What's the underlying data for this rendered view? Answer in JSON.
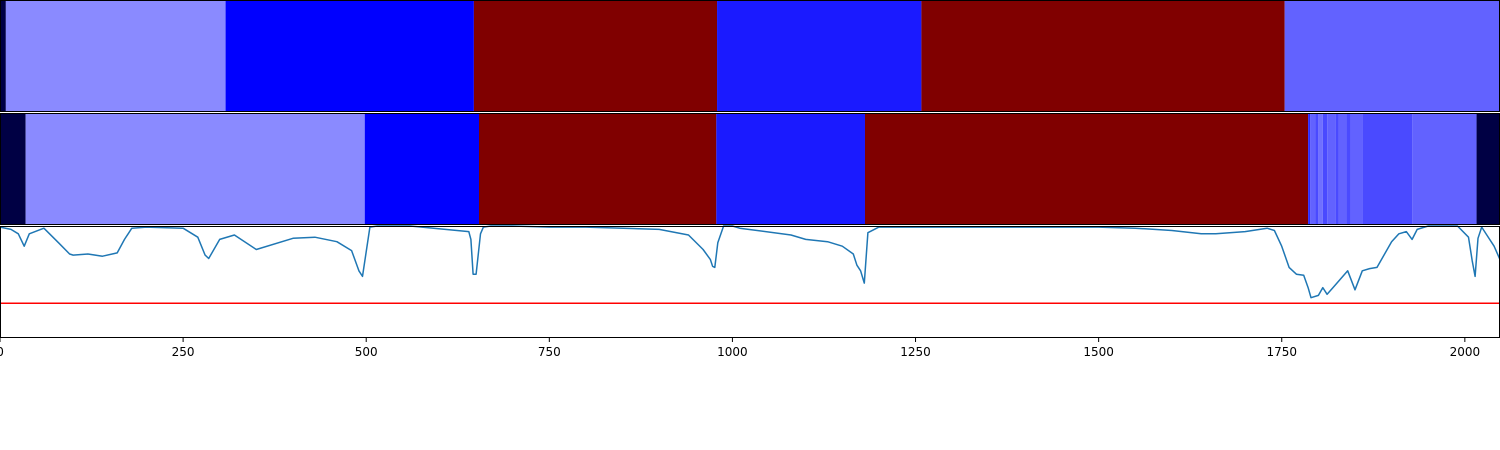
{
  "chart_data": [
    {
      "type": "heatmap",
      "panel": "top",
      "xlim": [
        0,
        2048
      ],
      "segments": [
        {
          "start": 0,
          "end": 8,
          "color": "#000044"
        },
        {
          "start": 8,
          "end": 308,
          "color": "#8a8aff"
        },
        {
          "start": 308,
          "end": 647,
          "color": "#0000ff"
        },
        {
          "start": 647,
          "end": 979,
          "color": "#800000"
        },
        {
          "start": 979,
          "end": 1258,
          "color": "#1a1aff"
        },
        {
          "start": 1258,
          "end": 1754,
          "color": "#800000"
        },
        {
          "start": 1754,
          "end": 2048,
          "color": "#6262ff"
        }
      ]
    },
    {
      "type": "heatmap",
      "panel": "middle",
      "xlim": [
        0,
        2048
      ],
      "segments": [
        {
          "start": 0,
          "end": 35,
          "color": "#000044"
        },
        {
          "start": 35,
          "end": 498,
          "color": "#8a8aff"
        },
        {
          "start": 498,
          "end": 654,
          "color": "#0000ff"
        },
        {
          "start": 654,
          "end": 978,
          "color": "#800000"
        },
        {
          "start": 978,
          "end": 1181,
          "color": "#1a1aff"
        },
        {
          "start": 1181,
          "end": 1786,
          "color": "#800000"
        },
        {
          "start": 1786,
          "end": 1789,
          "color": "#2a2aff"
        },
        {
          "start": 1789,
          "end": 1796,
          "color": "#6262ff"
        },
        {
          "start": 1796,
          "end": 1800,
          "color": "#4a4aff"
        },
        {
          "start": 1800,
          "end": 1806,
          "color": "#7070ff"
        },
        {
          "start": 1806,
          "end": 1812,
          "color": "#4a4aff"
        },
        {
          "start": 1812,
          "end": 1824,
          "color": "#6262ff"
        },
        {
          "start": 1824,
          "end": 1828,
          "color": "#4a4aff"
        },
        {
          "start": 1828,
          "end": 1838,
          "color": "#6262ff"
        },
        {
          "start": 1838,
          "end": 1844,
          "color": "#4a4aff"
        },
        {
          "start": 1844,
          "end": 1860,
          "color": "#6262ff"
        },
        {
          "start": 1860,
          "end": 1928,
          "color": "#4a4aff"
        },
        {
          "start": 1928,
          "end": 2016,
          "color": "#6262ff"
        },
        {
          "start": 2016,
          "end": 2048,
          "color": "#000044"
        }
      ]
    },
    {
      "type": "line",
      "panel": "bottom",
      "xlim": [
        0,
        2048
      ],
      "ylim": [
        0,
        1
      ],
      "xticks": [
        0,
        250,
        500,
        750,
        1000,
        1250,
        1500,
        1750,
        2000
      ],
      "series": [
        {
          "color": "#1f77b4",
          "x": [
            0,
            15,
            25,
            33,
            40,
            60,
            80,
            95,
            100,
            120,
            140,
            160,
            170,
            180,
            200,
            250,
            270,
            280,
            285,
            300,
            320,
            350,
            400,
            430,
            460,
            480,
            490,
            495,
            505,
            515,
            560,
            640,
            643,
            646,
            650,
            656,
            660,
            670,
            700,
            750,
            800,
            900,
            940,
            960,
            970,
            973,
            976,
            980,
            988,
            1000,
            1010,
            1080,
            1100,
            1130,
            1150,
            1165,
            1170,
            1175,
            1180,
            1185,
            1200,
            1300,
            1400,
            1500,
            1550,
            1600,
            1640,
            1660,
            1700,
            1730,
            1740,
            1750,
            1760,
            1770,
            1780,
            1786,
            1790,
            1800,
            1806,
            1812,
            1820,
            1840,
            1850,
            1860,
            1870,
            1880,
            1900,
            1910,
            1920,
            1928,
            1935,
            1950,
            1970,
            1990,
            2005,
            2010,
            2014,
            2018,
            2023,
            2030,
            2040,
            2048
          ],
          "y": [
            0.99,
            0.97,
            0.93,
            0.82,
            0.93,
            0.98,
            0.85,
            0.75,
            0.74,
            0.75,
            0.73,
            0.76,
            0.88,
            0.98,
            0.99,
            0.98,
            0.9,
            0.74,
            0.71,
            0.88,
            0.92,
            0.79,
            0.89,
            0.9,
            0.86,
            0.78,
            0.6,
            0.55,
            0.99,
            1.0,
            1.0,
            0.95,
            0.88,
            0.57,
            0.57,
            0.93,
            0.99,
            1.0,
            1.0,
            0.99,
            0.99,
            0.97,
            0.92,
            0.79,
            0.7,
            0.64,
            0.63,
            0.85,
            1.0,
            1.0,
            0.98,
            0.92,
            0.88,
            0.86,
            0.82,
            0.75,
            0.65,
            0.6,
            0.49,
            0.94,
            0.99,
            0.99,
            0.99,
            0.99,
            0.98,
            0.96,
            0.93,
            0.93,
            0.95,
            0.98,
            0.96,
            0.82,
            0.63,
            0.57,
            0.56,
            0.45,
            0.36,
            0.38,
            0.45,
            0.39,
            0.45,
            0.6,
            0.43,
            0.6,
            0.62,
            0.63,
            0.86,
            0.93,
            0.95,
            0.88,
            0.97,
            1.0,
            1.0,
            1.0,
            0.9,
            0.69,
            0.55,
            0.89,
            0.99,
            0.92,
            0.82,
            0.7
          ],
          "y_comment": ""
        },
        {
          "color": "#ff0000",
          "type": "hline",
          "y": 0.31
        }
      ]
    }
  ]
}
